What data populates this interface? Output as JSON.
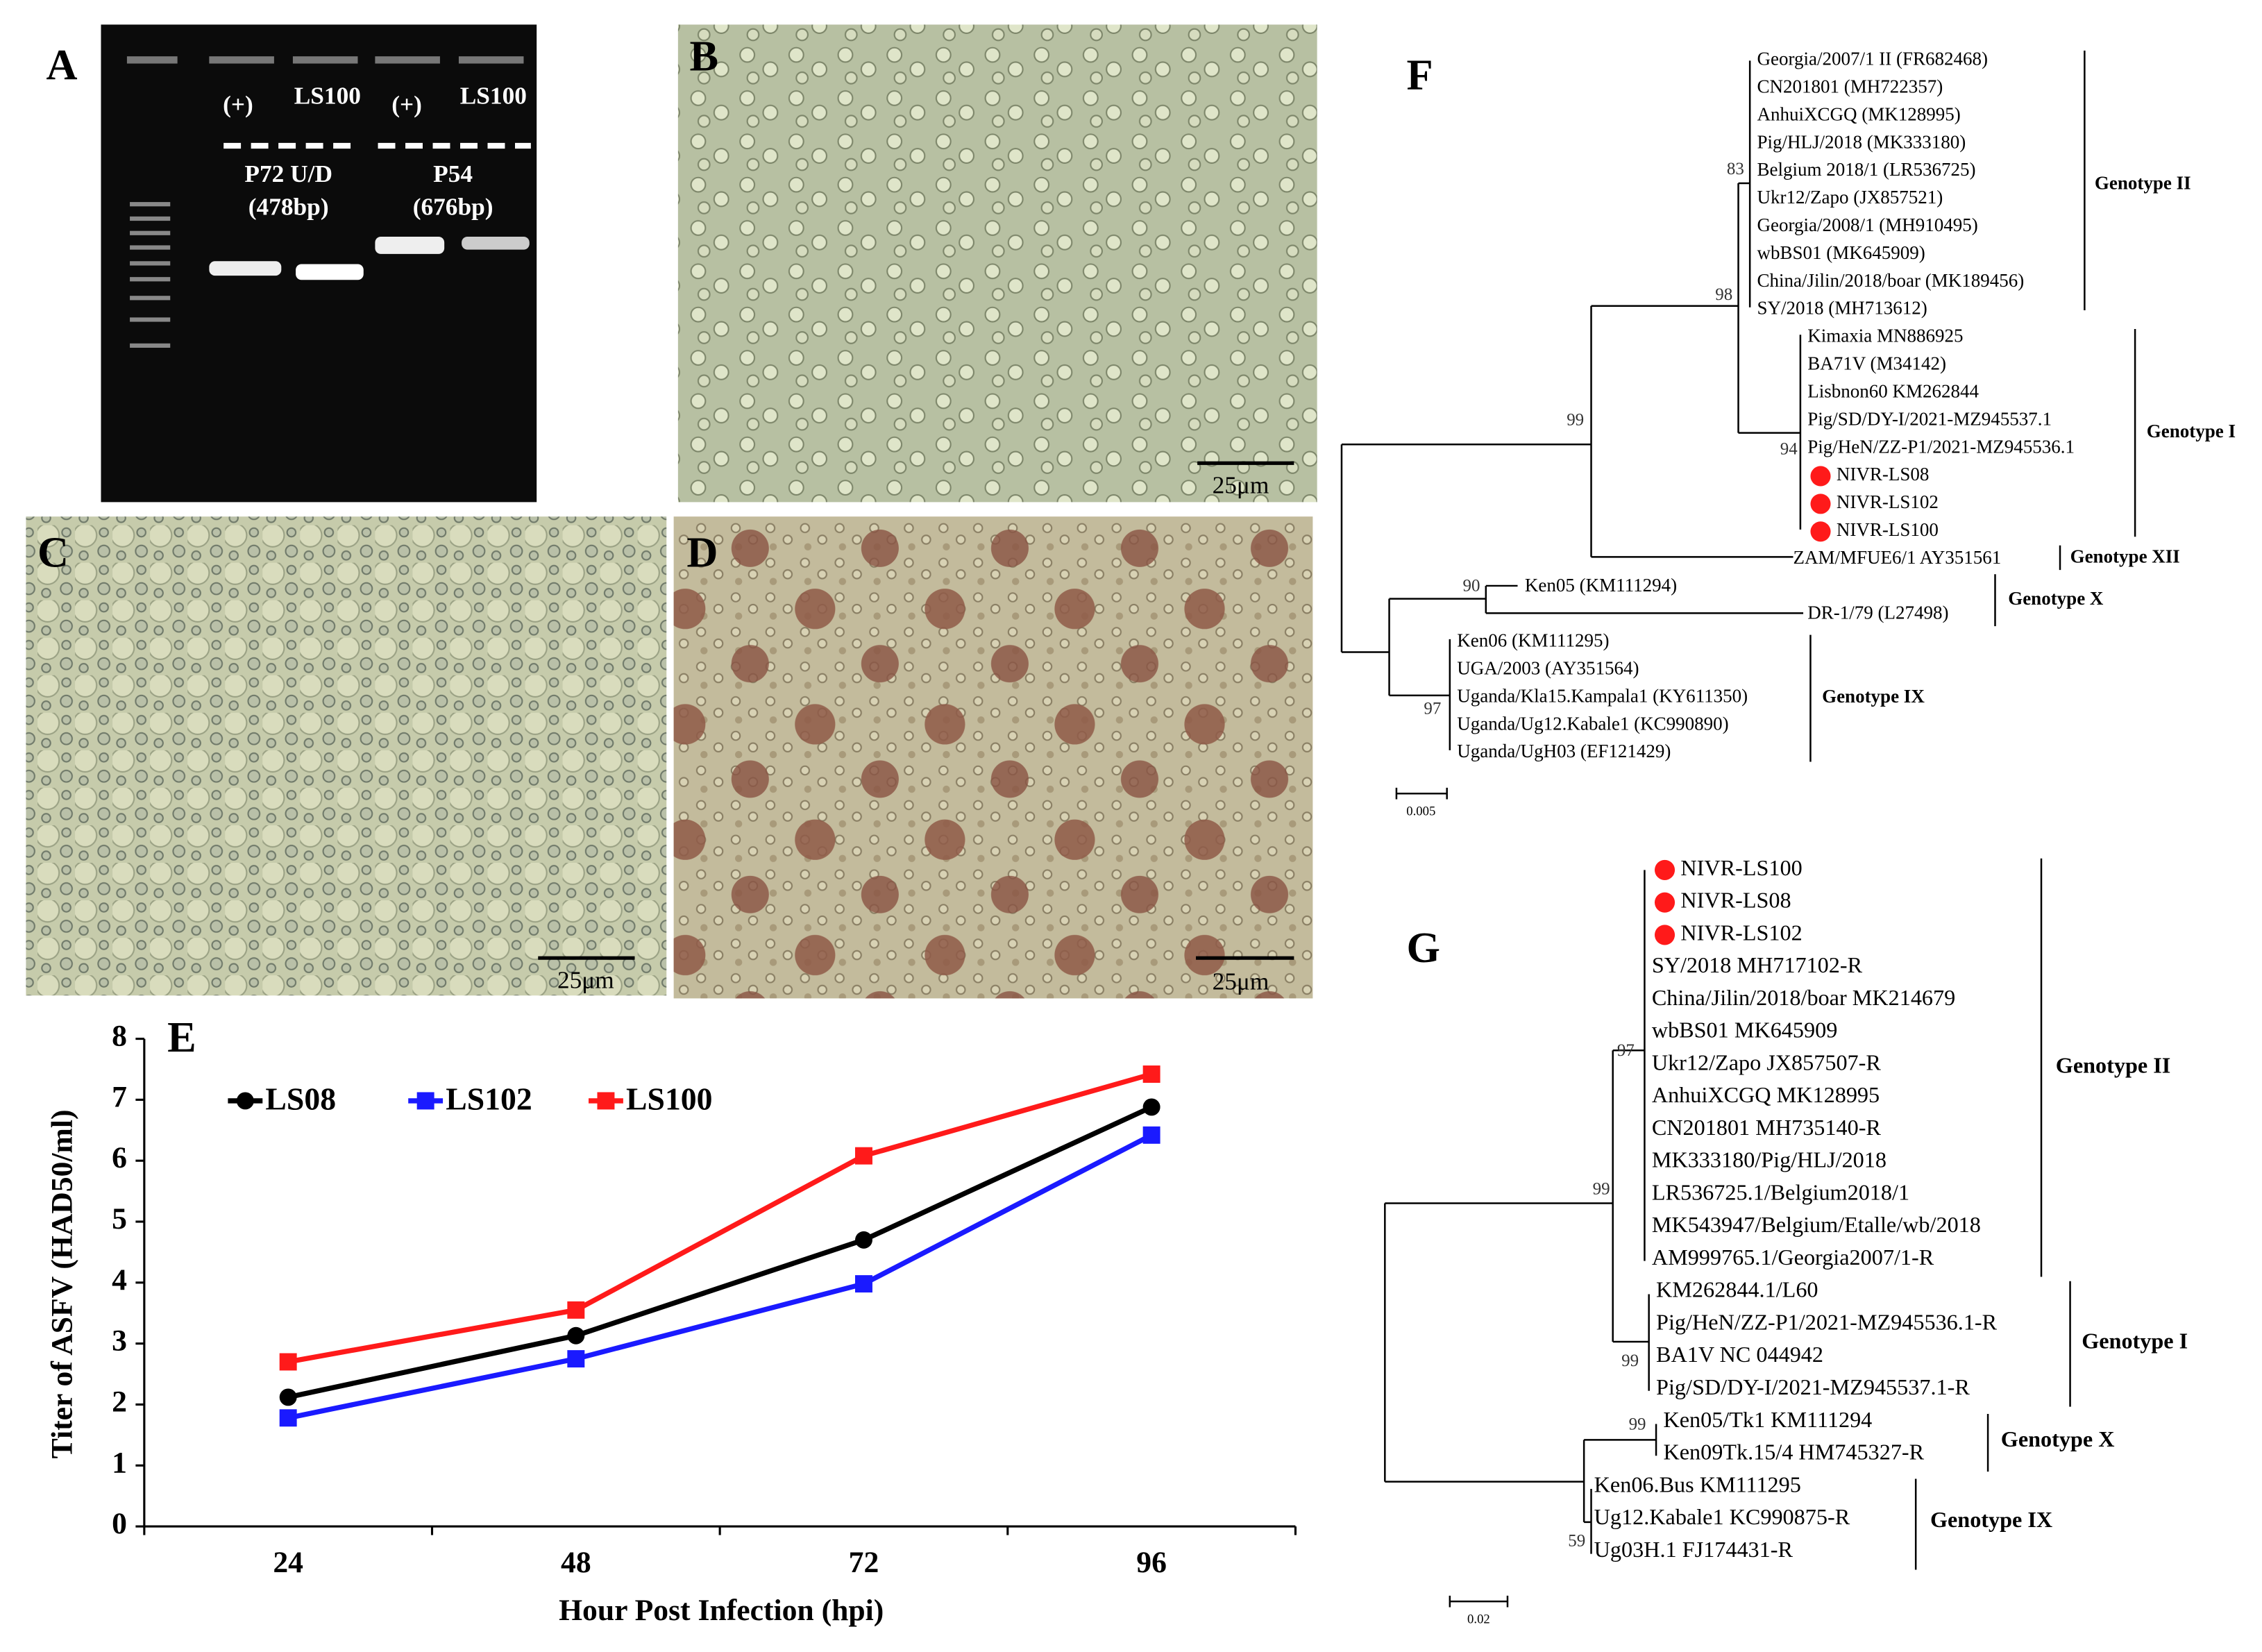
{
  "panels": {
    "A": {
      "label": "A",
      "lanes": [
        "(+)",
        "LS100",
        "(+)",
        "LS100"
      ],
      "targets": [
        {
          "name": "P72 U/D",
          "size": "(478bp)"
        },
        {
          "name": "P54",
          "size": "(676bp)"
        }
      ]
    },
    "B": {
      "label": "B",
      "scale_bar": "25μm"
    },
    "C": {
      "label": "C",
      "scale_bar": "25μm"
    },
    "D": {
      "label": "D",
      "scale_bar": "25μm"
    }
  },
  "chart_data": {
    "type": "line",
    "panel_label": "E",
    "xlabel": "Hour Post Infection (hpi)",
    "ylabel": "Titer of ASFV (HAD50/ml)",
    "categories": [
      "24",
      "48",
      "72",
      "96"
    ],
    "series": [
      {
        "name": "LS08",
        "color": "#000000",
        "marker": "circle",
        "values": [
          2.12,
          3.13,
          4.7,
          6.88
        ]
      },
      {
        "name": "LS102",
        "color": "#1a1aff",
        "marker": "square",
        "values": [
          1.78,
          2.75,
          3.98,
          6.42
        ]
      },
      {
        "name": "LS100",
        "color": "#ff1a1a",
        "marker": "square",
        "values": [
          2.7,
          3.55,
          6.08,
          7.42
        ]
      }
    ],
    "ylim": [
      0,
      8
    ],
    "yticks": [
      0,
      1,
      2,
      3,
      4,
      5,
      6,
      7,
      8
    ]
  },
  "trees": [
    {
      "panel_label": "F",
      "scale": "0.005",
      "bootstrap": [
        83,
        98,
        99,
        94,
        90,
        97
      ],
      "genotypes": [
        "Genotype II",
        "Genotype I",
        "Genotype XII",
        "Genotype X",
        "Genotype IX"
      ],
      "leaves": [
        {
          "text": "Georgia/2007/1 II (FR682468)"
        },
        {
          "text": "CN201801 (MH722357)"
        },
        {
          "text": "AnhuiXCGQ (MK128995)"
        },
        {
          "text": "Pig/HLJ/2018 (MK333180)"
        },
        {
          "text": "Belgium 2018/1 (LR536725)"
        },
        {
          "text": "Ukr12/Zapo (JX857521)"
        },
        {
          "text": "Georgia/2008/1 (MH910495)"
        },
        {
          "text": "wbBS01 (MK645909)"
        },
        {
          "text": "China/Jilin/2018/boar (MK189456)"
        },
        {
          "text": "SY/2018 (MH713612)"
        },
        {
          "text": "Kimaxia MN886925"
        },
        {
          "text": "BA71V (M34142)"
        },
        {
          "text": "Lisbnon60 KM262844"
        },
        {
          "text": "Pig/SD/DY-I/2021-MZ945537.1"
        },
        {
          "text": "Pig/HeN/ZZ-P1/2021-MZ945536.1"
        },
        {
          "text": "NIVR-LS08",
          "marked": true
        },
        {
          "text": "NIVR-LS102",
          "marked": true
        },
        {
          "text": "NIVR-LS100",
          "marked": true
        },
        {
          "text": "ZAM/MFUE6/1 AY351561"
        },
        {
          "text": "Ken05 (KM111294)"
        },
        {
          "text": "DR-1/79 (L27498)"
        },
        {
          "text": "Ken06 (KM111295)"
        },
        {
          "text": "UGA/2003 (AY351564)"
        },
        {
          "text": "Uganda/Kla15.Kampala1 (KY611350)"
        },
        {
          "text": "Uganda/Ug12.Kabale1 (KC990890)"
        },
        {
          "text": "Uganda/UgH03 (EF121429)"
        }
      ]
    },
    {
      "panel_label": "G",
      "scale": "0.02",
      "bootstrap": [
        97,
        99,
        99,
        99,
        59
      ],
      "genotypes": [
        "Genotype II",
        "Genotype I",
        "Genotype X",
        "Genotype IX"
      ],
      "leaves": [
        {
          "text": "NIVR-LS100",
          "marked": true
        },
        {
          "text": "NIVR-LS08",
          "marked": true
        },
        {
          "text": "NIVR-LS102",
          "marked": true
        },
        {
          "text": "SY/2018 MH717102-R"
        },
        {
          "text": "China/Jilin/2018/boar MK214679"
        },
        {
          "text": "wbBS01 MK645909"
        },
        {
          "text": "Ukr12/Zapo JX857507-R"
        },
        {
          "text": "AnhuiXCGQ MK128995"
        },
        {
          "text": "CN201801 MH735140-R"
        },
        {
          "text": "MK333180/Pig/HLJ/2018"
        },
        {
          "text": "LR536725.1/Belgium2018/1"
        },
        {
          "text": "MK543947/Belgium/Etalle/wb/2018"
        },
        {
          "text": "AM999765.1/Georgia2007/1-R"
        },
        {
          "text": "KM262844.1/L60"
        },
        {
          "text": "Pig/HeN/ZZ-P1/2021-MZ945536.1-R"
        },
        {
          "text": "BA1V NC 044942"
        },
        {
          "text": "Pig/SD/DY-I/2021-MZ945537.1-R"
        },
        {
          "text": "Ken05/Tk1 KM111294"
        },
        {
          "text": "Ken09Tk.15/4 HM745327-R"
        },
        {
          "text": "Ken06.Bus KM111295"
        },
        {
          "text": "Ug12.Kabale1 KC990875-R"
        },
        {
          "text": "Ug03H.1 FJ174431-R"
        }
      ]
    }
  ]
}
